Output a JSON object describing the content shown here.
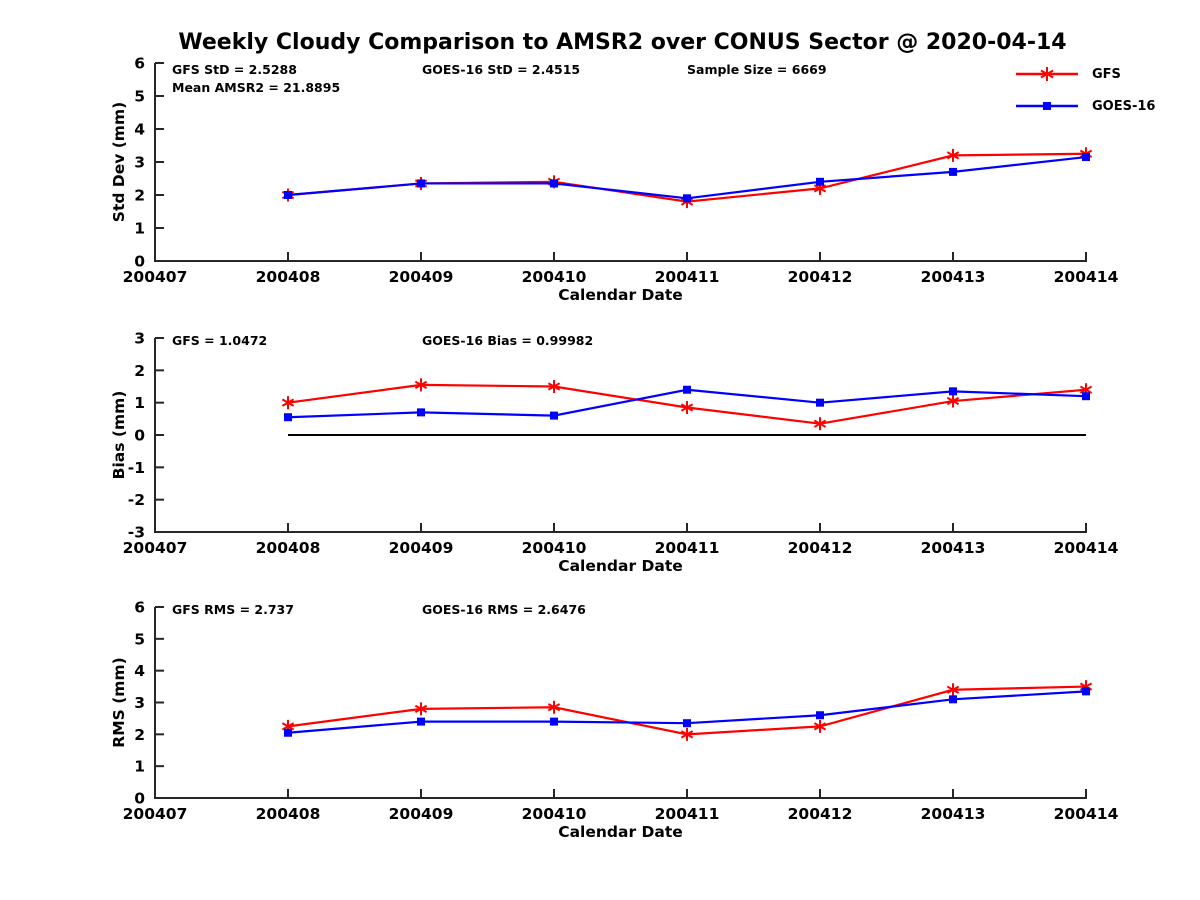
{
  "title": "Weekly Cloudy Comparison to AMSR2 over CONUS Sector @ 2020-04-14",
  "legend": {
    "position": "top-right",
    "items": [
      {
        "label": "GFS",
        "color": "#ff0000",
        "marker": "asterisk"
      },
      {
        "label": "GOES-16",
        "color": "#0000ff",
        "marker": "square"
      }
    ]
  },
  "colors": {
    "gfs": "#ff0000",
    "goes16": "#0000ff",
    "axis": "#262626",
    "text": "#000000",
    "zero_line": "#000000"
  },
  "chart_data": [
    {
      "type": "line",
      "name": "std-dev",
      "ylabel": "Std Dev (mm)",
      "xlabel": "Calendar Date",
      "ylim": [
        0,
        6
      ],
      "yticks": [
        "0",
        "1",
        "2",
        "3",
        "4",
        "5",
        "6"
      ],
      "categories": [
        "200407",
        "200408",
        "200409",
        "200410",
        "200411",
        "200412",
        "200413",
        "200414"
      ],
      "x": [
        "200408",
        "200409",
        "200410",
        "200411",
        "200412",
        "200413",
        "200414"
      ],
      "grid": false,
      "zero_line": false,
      "annotations": [
        {
          "text": "GFS StD = 2.5288",
          "row": 0,
          "col": 0
        },
        {
          "text": "Mean AMSR2 = 21.8895",
          "row": 1,
          "col": 0
        },
        {
          "text": "GOES-16 StD = 2.4515",
          "row": 0,
          "col": 1
        },
        {
          "text": "Sample Size = 6669",
          "row": 0,
          "col": 2
        }
      ],
      "series": [
        {
          "name": "GFS",
          "color": "#ff0000",
          "marker": "asterisk",
          "values": [
            2.0,
            2.35,
            2.4,
            1.8,
            2.2,
            3.2,
            3.25
          ]
        },
        {
          "name": "GOES-16",
          "color": "#0000ff",
          "marker": "square",
          "values": [
            2.0,
            2.35,
            2.35,
            1.9,
            2.4,
            2.7,
            3.15
          ]
        }
      ]
    },
    {
      "type": "line",
      "name": "bias",
      "ylabel": "Bias (mm)",
      "xlabel": "Calendar Date",
      "ylim": [
        -3,
        3
      ],
      "yticks": [
        "-3",
        "-2",
        "-1",
        "0",
        "1",
        "2",
        "3"
      ],
      "categories": [
        "200407",
        "200408",
        "200409",
        "200410",
        "200411",
        "200412",
        "200413",
        "200414"
      ],
      "x": [
        "200408",
        "200409",
        "200410",
        "200411",
        "200412",
        "200413",
        "200414"
      ],
      "grid": false,
      "zero_line": true,
      "annotations": [
        {
          "text": "GFS = 1.0472",
          "row": 0,
          "col": 0
        },
        {
          "text": "GOES-16 Bias  = 0.99982",
          "row": 0,
          "col": 1
        }
      ],
      "series": [
        {
          "name": "GFS",
          "color": "#ff0000",
          "marker": "asterisk",
          "values": [
            1.0,
            1.55,
            1.5,
            0.85,
            0.35,
            1.05,
            1.4
          ]
        },
        {
          "name": "GOES-16",
          "color": "#0000ff",
          "marker": "square",
          "values": [
            0.55,
            0.7,
            0.6,
            1.4,
            1.0,
            1.35,
            1.2
          ]
        }
      ]
    },
    {
      "type": "line",
      "name": "rms",
      "ylabel": "RMS (mm)",
      "xlabel": "Calendar Date",
      "ylim": [
        0,
        6
      ],
      "yticks": [
        "0",
        "1",
        "2",
        "3",
        "4",
        "5",
        "6"
      ],
      "categories": [
        "200407",
        "200408",
        "200409",
        "200410",
        "200411",
        "200412",
        "200413",
        "200414"
      ],
      "x": [
        "200408",
        "200409",
        "200410",
        "200411",
        "200412",
        "200413",
        "200414"
      ],
      "grid": false,
      "zero_line": false,
      "annotations": [
        {
          "text": "GFS RMS = 2.737",
          "row": 0,
          "col": 0
        },
        {
          "text": "GOES-16 RMS = 2.6476",
          "row": 0,
          "col": 1
        }
      ],
      "series": [
        {
          "name": "GFS",
          "color": "#ff0000",
          "marker": "asterisk",
          "values": [
            2.25,
            2.8,
            2.85,
            2.0,
            2.25,
            3.4,
            3.5
          ]
        },
        {
          "name": "GOES-16",
          "color": "#0000ff",
          "marker": "square",
          "values": [
            2.05,
            2.4,
            2.4,
            2.35,
            2.6,
            3.1,
            3.35
          ]
        }
      ]
    }
  ]
}
